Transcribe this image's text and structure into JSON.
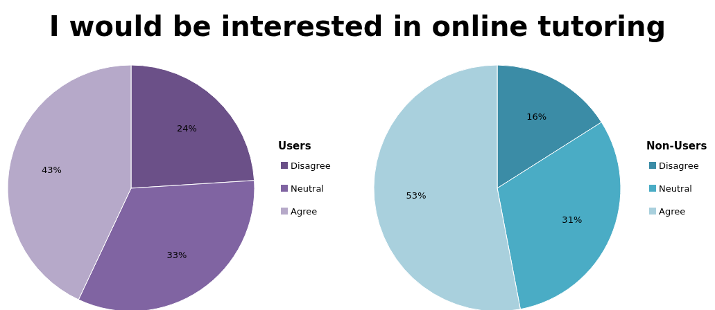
{
  "chart_data": [
    {
      "type": "pie",
      "title": "I would be interested in online tutoring",
      "legend_title": "Users",
      "legend": "right",
      "categories": [
        "Disagree",
        "Neutral",
        "Agree"
      ],
      "values": [
        24,
        33,
        43
      ],
      "value_labels": [
        "24%",
        "33%",
        "43%"
      ],
      "colors": [
        "#6b5088",
        "#8064a2",
        "#b6a9c9"
      ]
    },
    {
      "type": "pie",
      "legend_title": "Non-Users",
      "legend": "right",
      "categories": [
        "Disagree",
        "Neutral",
        "Agree"
      ],
      "values": [
        16,
        31,
        53
      ],
      "value_labels": [
        "16%",
        "31%",
        "53%"
      ],
      "colors": [
        "#3b8ca6",
        "#4aacc5",
        "#a9d0dd"
      ]
    }
  ]
}
